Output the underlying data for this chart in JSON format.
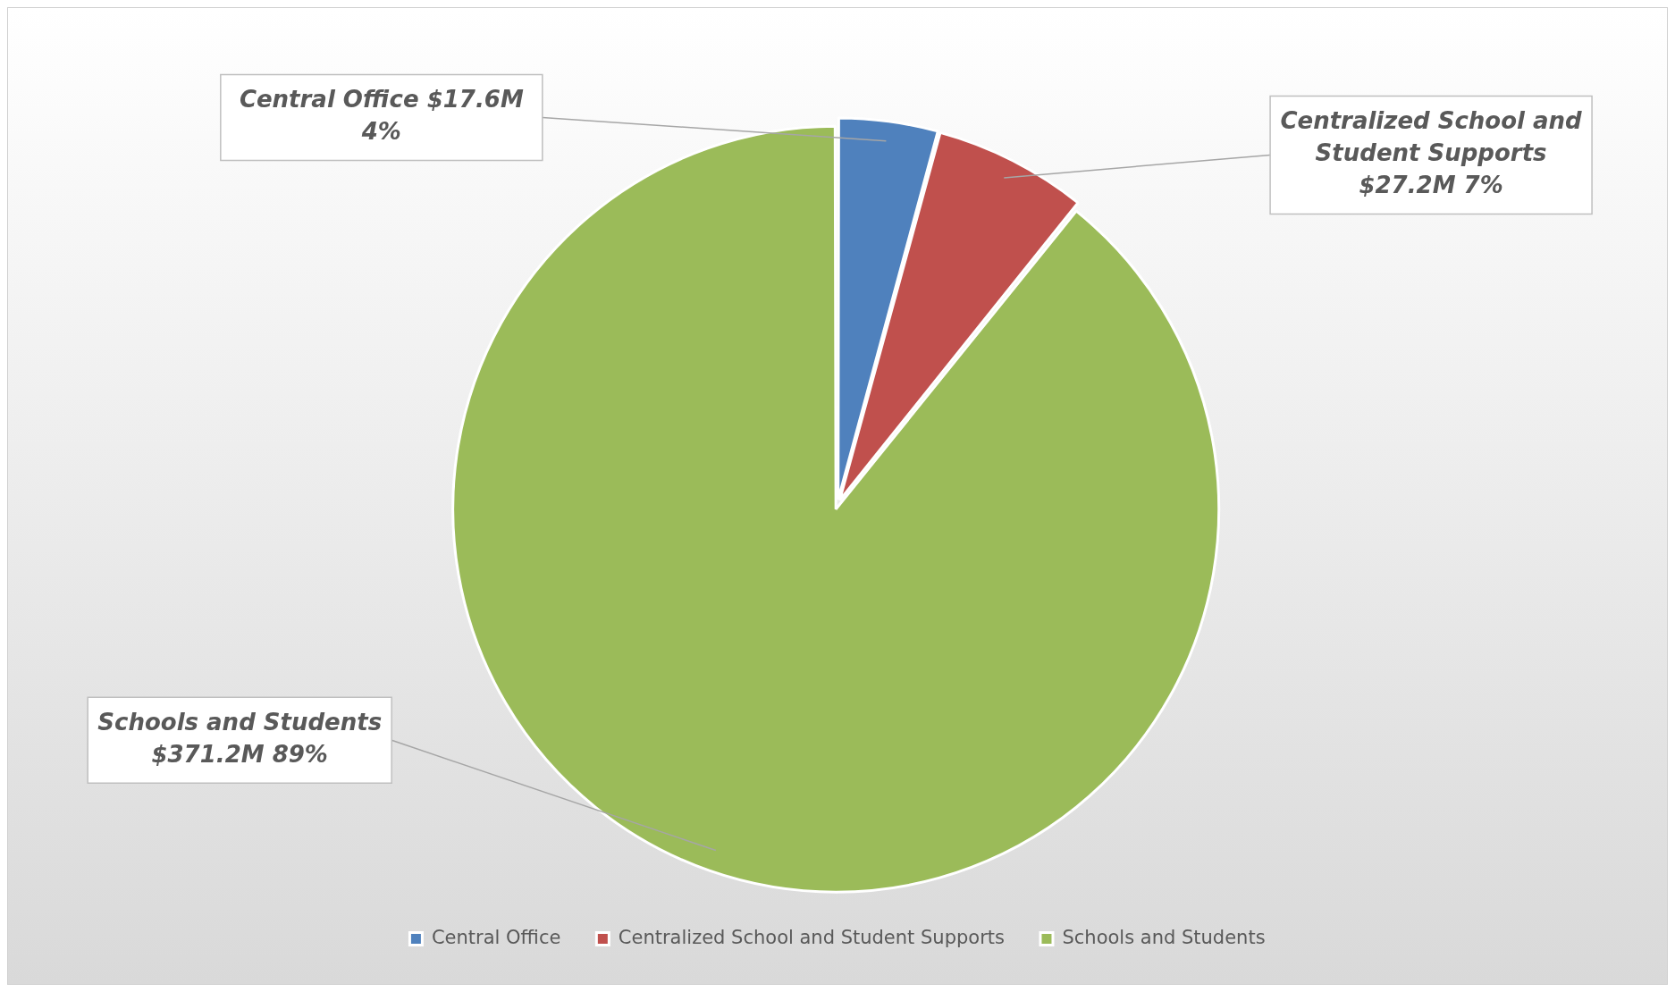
{
  "chart_data": {
    "type": "pie",
    "categories": [
      "Central Office",
      "Centralized School and Student Supports",
      "Schools and Students"
    ],
    "values": [
      17.6,
      27.2,
      371.2
    ],
    "colors": [
      "#4f81bd",
      "#c0504d",
      "#9bbb59"
    ],
    "value_labels": [
      "$17.6M",
      "$27.2M",
      "$371.2M"
    ],
    "annotations": [
      "Central Office",
      "4%",
      "Centralized School and Student Supports",
      "7%",
      "Schools and Students",
      "89%"
    ],
    "legend": "bottom"
  }
}
